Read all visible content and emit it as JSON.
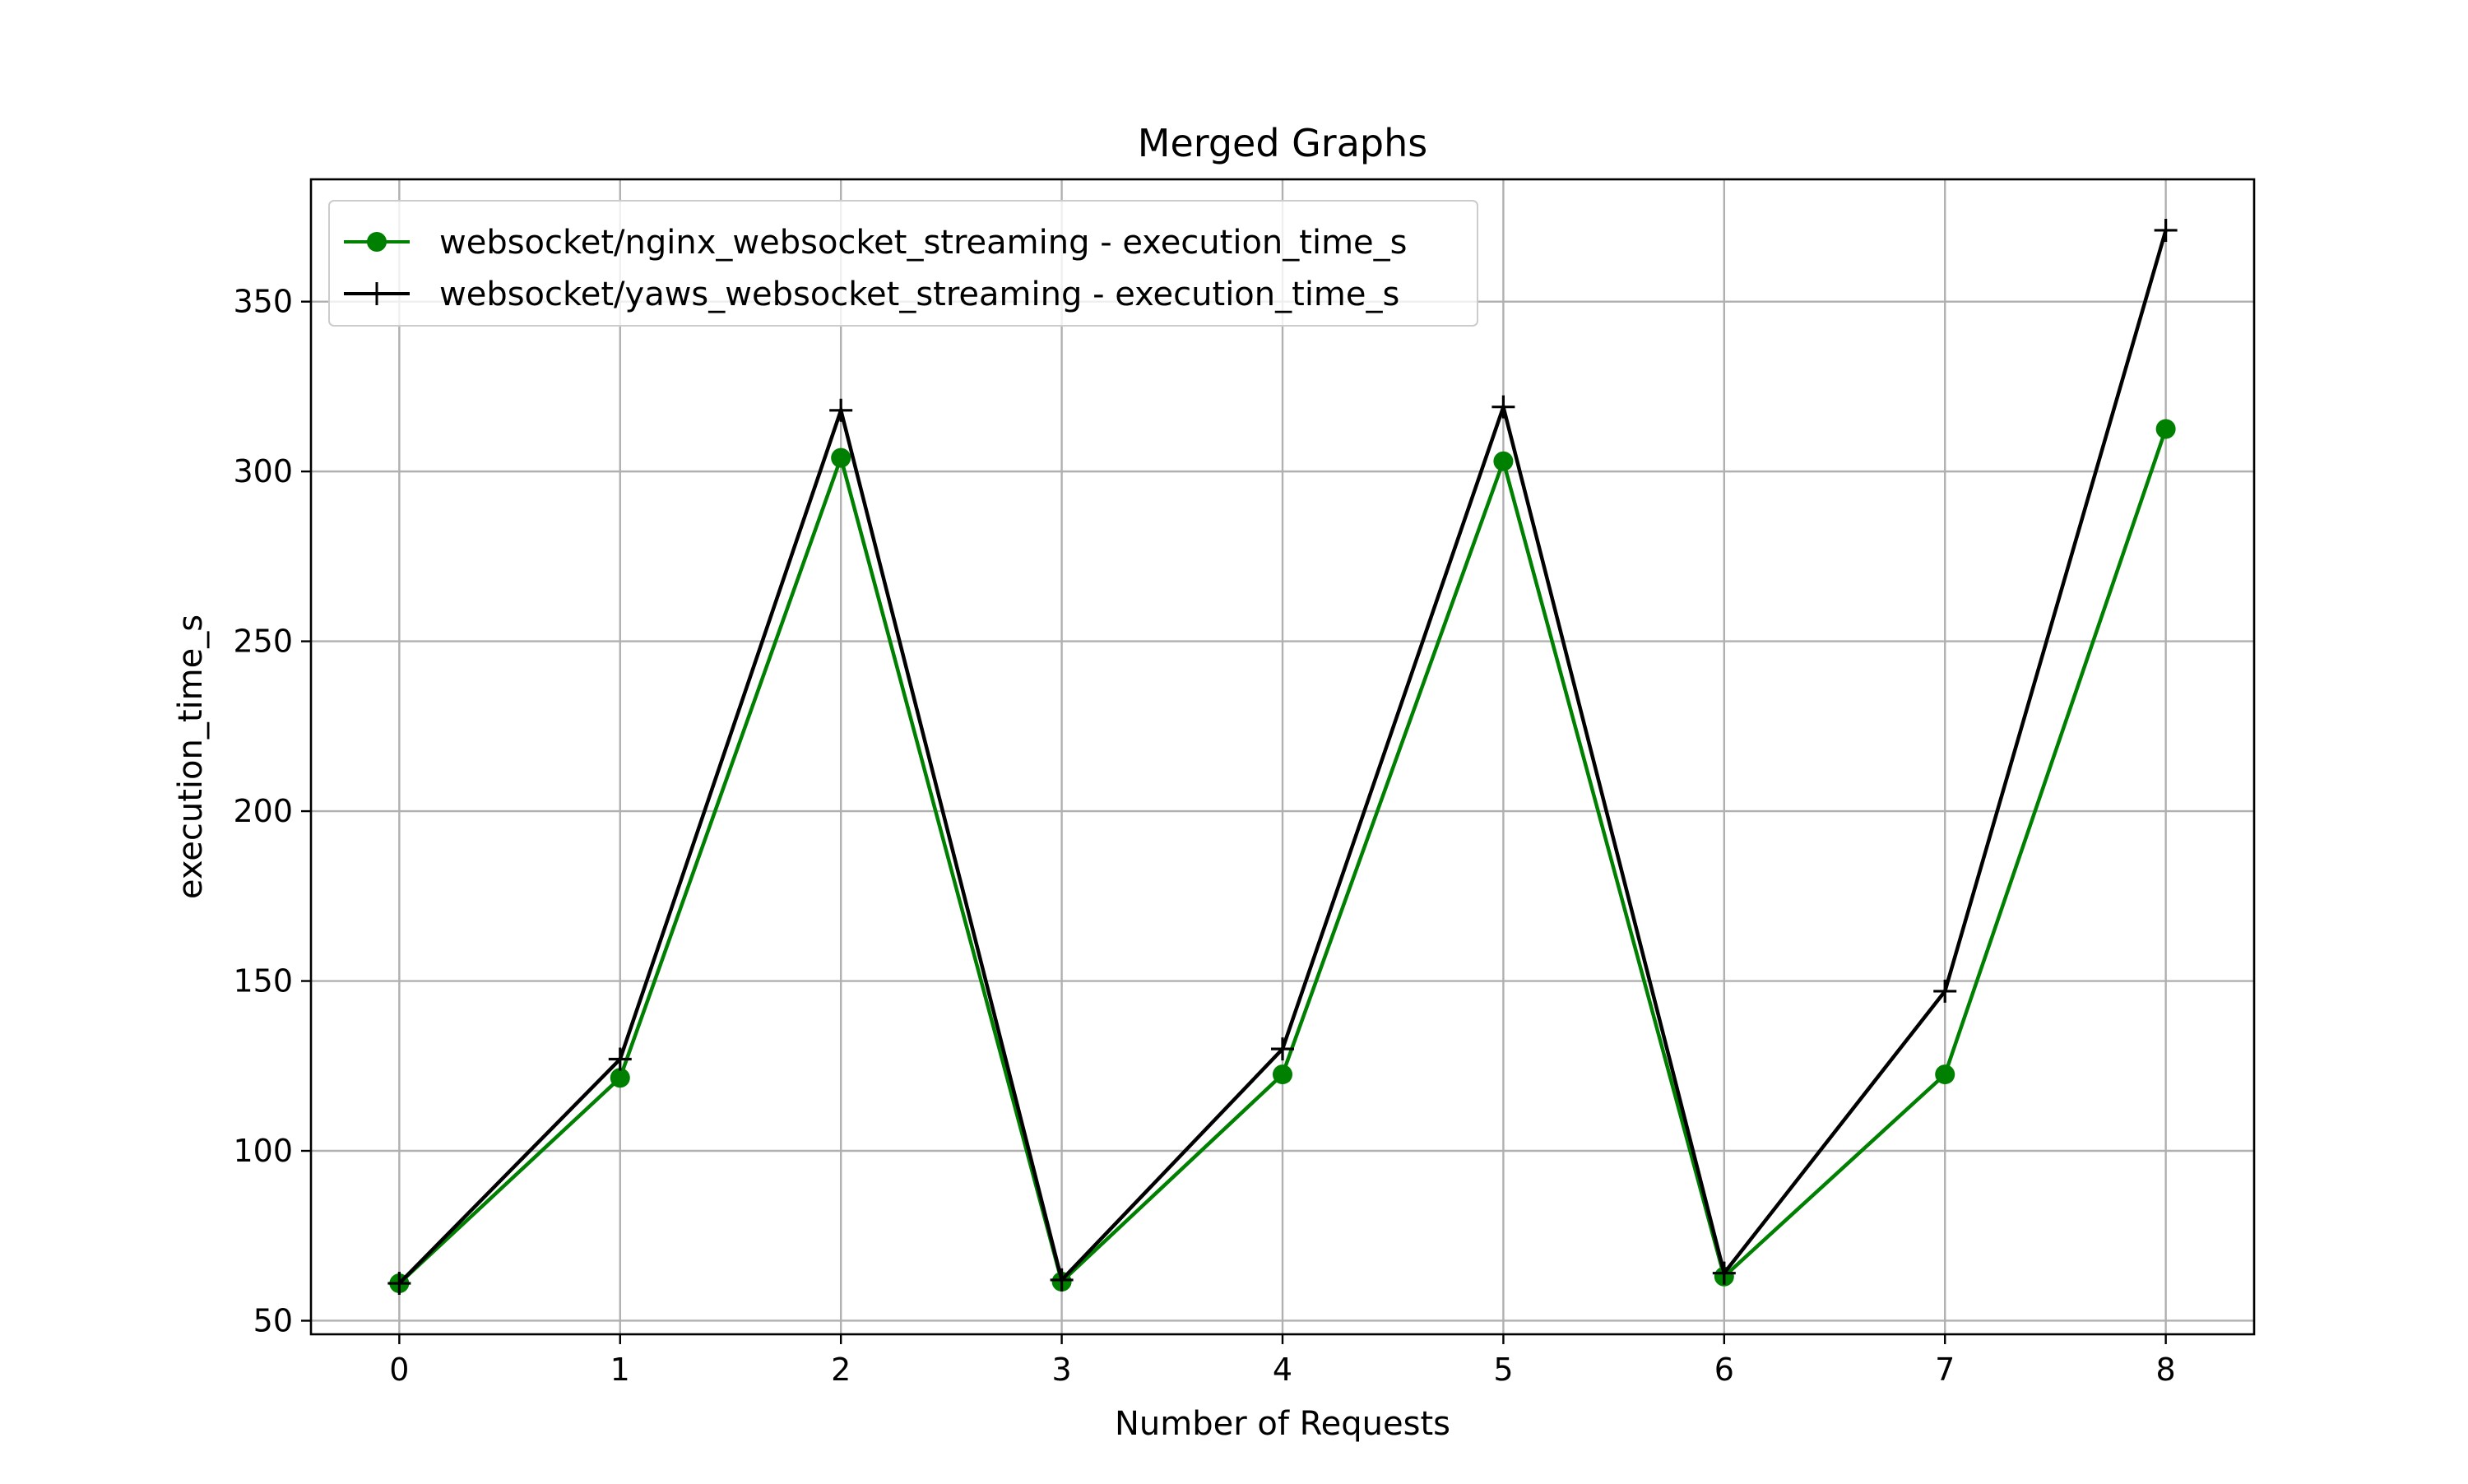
{
  "chart_data": {
    "type": "line",
    "title": "Merged Graphs",
    "xlabel": "Number of Requests",
    "ylabel": "execution_time_s",
    "x": [
      0,
      1,
      2,
      3,
      4,
      5,
      6,
      7,
      8
    ],
    "xlim": [
      -0.4,
      8.4
    ],
    "ylim": [
      46,
      386
    ],
    "xticks": [
      0,
      1,
      2,
      3,
      4,
      5,
      6,
      7,
      8
    ],
    "yticks": [
      50,
      100,
      150,
      200,
      250,
      300,
      350
    ],
    "grid": true,
    "legend_position": "upper-left",
    "series": [
      {
        "name": "websocket/nginx_websocket_streaming - execution_time_s",
        "color": "#008000",
        "marker": "circle",
        "values": [
          61,
          121.5,
          304,
          61.5,
          122.5,
          303,
          63,
          122.5,
          312.5
        ]
      },
      {
        "name": "websocket/yaws_websocket_streaming - execution_time_s",
        "color": "#000000",
        "marker": "plus",
        "values": [
          61,
          127,
          318,
          62,
          130,
          319,
          64,
          147,
          371
        ]
      }
    ]
  }
}
